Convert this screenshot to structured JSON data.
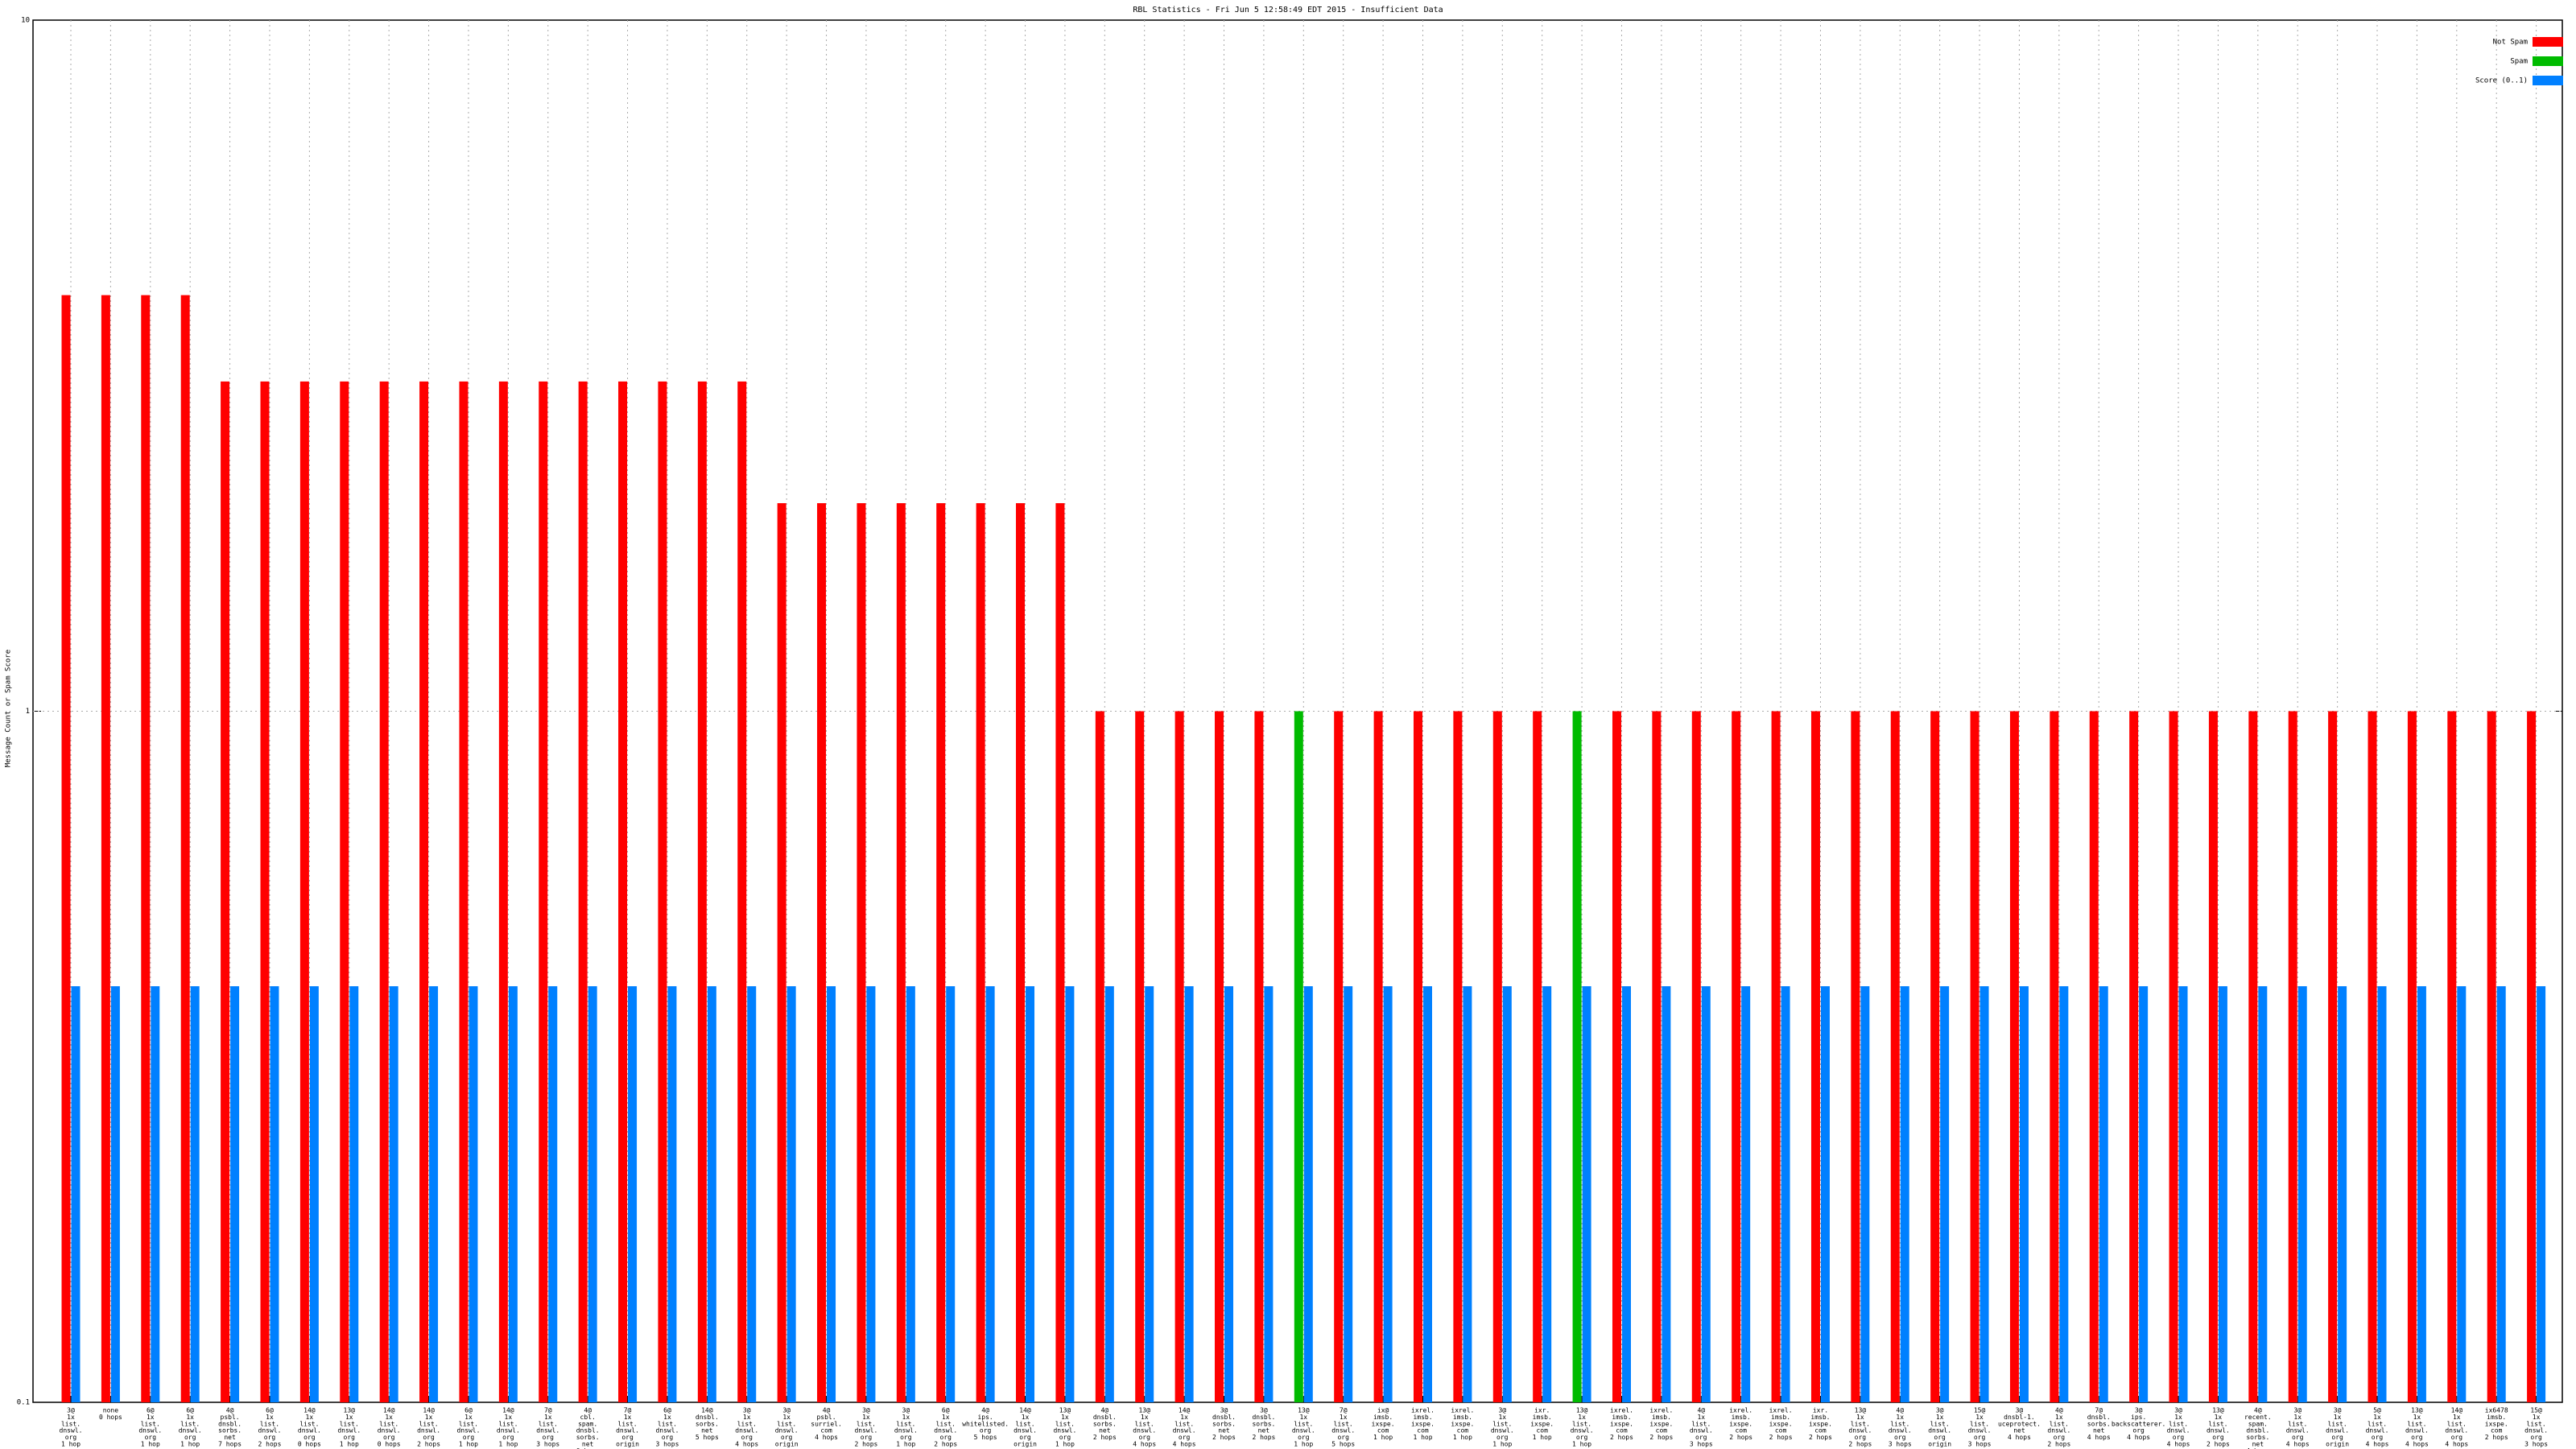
{
  "chart_data": {
    "type": "bar",
    "title": "RBL Statistics - Fri Jun  5 12:58:49 EDT 2015 - Insufficient Data",
    "y_label": "Message Count or Spam Score",
    "log_scale": true,
    "grid": true,
    "legend": "top-right",
    "ylim": [
      0.1,
      10
    ],
    "yticks": [
      0.1,
      1,
      10
    ],
    "categories": [
      [
        "3@",
        "1x",
        "list.",
        "dnswl.",
        "org",
        "1 hop"
      ],
      [
        "none",
        "0 hops"
      ],
      [
        "6@",
        "1x",
        "list.",
        "dnswl.",
        "org",
        "1 hop"
      ],
      [
        "6@",
        "1x",
        "list.",
        "dnswl.",
        "org",
        "1 hop"
      ],
      [
        "4@",
        "psbl.",
        "dnsbl.",
        "sorbs.",
        "net",
        "7 hops"
      ],
      [
        "6@",
        "1x",
        "list.",
        "dnswl.",
        "org",
        "2 hops"
      ],
      [
        "14@",
        "1x",
        "list.",
        "dnswl.",
        "org",
        "0 hops"
      ],
      [
        "13@",
        "1x",
        "list.",
        "dnswl.",
        "org",
        "1 hop"
      ],
      [
        "14@",
        "1x",
        "list.",
        "dnswl.",
        "org",
        "0 hops"
      ],
      [
        "14@",
        "1x",
        "list.",
        "dnswl.",
        "org",
        "2 hops"
      ],
      [
        "6@",
        "1x",
        "list.",
        "dnswl.",
        "org",
        "1 hop"
      ],
      [
        "14@",
        "1x",
        "list.",
        "dnswl.",
        "org",
        "1 hop"
      ],
      [
        "7@",
        "1x",
        "list.",
        "dnswl.",
        "org",
        "3 hops"
      ],
      [
        "4@",
        "cbl.",
        "spam.",
        "dnsbl.",
        "sorbs.",
        "net",
        "0 hops"
      ],
      [
        "7@",
        "1x",
        "list.",
        "dnswl.",
        "org",
        "origin"
      ],
      [
        "6@",
        "1x",
        "list.",
        "dnswl.",
        "org",
        "3 hops"
      ],
      [
        "14@",
        "dnsbl.",
        "sorbs.",
        "net",
        "5 hops"
      ],
      [
        "3@",
        "1x",
        "list.",
        "dnswl.",
        "org",
        "4 hops"
      ],
      [
        "3@",
        "1x",
        "list.",
        "dnswl.",
        "org",
        "origin"
      ],
      [
        "4@",
        "psbl.",
        "surriel.",
        "com",
        "4 hops"
      ],
      [
        "3@",
        "1x",
        "list.",
        "dnswl.",
        "org",
        "2 hops"
      ],
      [
        "3@",
        "1x",
        "list.",
        "dnswl.",
        "org",
        "1 hop"
      ],
      [
        "6@",
        "1x",
        "list.",
        "dnswl.",
        "org",
        "2 hops"
      ],
      [
        "4@",
        "ips.",
        "whitelisted.",
        "org",
        "5 hops"
      ],
      [
        "14@",
        "1x",
        "list.",
        "dnswl.",
        "org",
        "origin"
      ],
      [
        "13@",
        "1x",
        "list.",
        "dnswl.",
        "org",
        "1 hop"
      ],
      [
        "4@",
        "dnsbl.",
        "sorbs.",
        "net",
        "2 hops"
      ],
      [
        "13@",
        "1x",
        "list.",
        "dnswl.",
        "org",
        "4 hops"
      ],
      [
        "14@",
        "1x",
        "list.",
        "dnswl.",
        "org",
        "4 hops"
      ],
      [
        "3@",
        "dnsbl.",
        "sorbs.",
        "net",
        "2 hops"
      ],
      [
        "3@",
        "dnsbl.",
        "sorbs.",
        "net",
        "2 hops"
      ],
      [
        "13@",
        "1x",
        "list.",
        "dnswl.",
        "org",
        "1 hop"
      ],
      [
        "7@",
        "1x",
        "list.",
        "dnswl.",
        "org",
        "5 hops"
      ],
      [
        "ix@",
        "imsb.",
        "ixspe.",
        "com",
        "1 hop"
      ],
      [
        "ixrel.",
        "imsb.",
        "ixspe.",
        "com",
        "1 hop"
      ],
      [
        "ixrel.",
        "imsb.",
        "ixspe.",
        "com",
        "1 hop"
      ],
      [
        "3@",
        "1x",
        "list.",
        "dnswl.",
        "org",
        "1 hop"
      ],
      [
        "ixr.",
        "imsb.",
        "ixspe.",
        "com",
        "1 hop"
      ],
      [
        "13@",
        "1x",
        "list.",
        "dnswl.",
        "org",
        "1 hop"
      ],
      [
        "ixrel.",
        "imsb.",
        "ixspe.",
        "com",
        "2 hops"
      ],
      [
        "ixrel.",
        "imsb.",
        "ixspe.",
        "com",
        "2 hops"
      ],
      [
        "4@",
        "1x",
        "list.",
        "dnswl.",
        "org",
        "3 hops"
      ],
      [
        "ixrel.",
        "imsb.",
        "ixspe.",
        "com",
        "2 hops"
      ],
      [
        "ixrel.",
        "imsb.",
        "ixspe.",
        "com",
        "2 hops"
      ],
      [
        "ixr.",
        "imsb.",
        "ixspe.",
        "com",
        "2 hops"
      ],
      [
        "13@",
        "1x",
        "list.",
        "dnswl.",
        "org",
        "2 hops"
      ],
      [
        "4@",
        "1x",
        "list.",
        "dnswl.",
        "org",
        "3 hops"
      ],
      [
        "3@",
        "1x",
        "list.",
        "dnswl.",
        "org",
        "origin"
      ],
      [
        "15@",
        "1x",
        "list.",
        "dnswl.",
        "org",
        "3 hops"
      ],
      [
        "3@",
        "dnsbl-1.",
        "uceprotect.",
        "net",
        "4 hops"
      ],
      [
        "4@",
        "1x",
        "list.",
        "dnswl.",
        "org",
        "2 hops"
      ],
      [
        "7@",
        "dnsbl.",
        "sorbs.",
        "net",
        "4 hops"
      ],
      [
        "3@",
        "ips.",
        "backscatterer.",
        "org",
        "4 hops"
      ],
      [
        "3@",
        "1x",
        "list.",
        "dnswl.",
        "org",
        "4 hops"
      ],
      [
        "13@",
        "1x",
        "list.",
        "dnswl.",
        "org",
        "2 hops"
      ],
      [
        "4@",
        "recent.",
        "spam.",
        "dnsbl.",
        "sorbs.",
        "net",
        "4 hops"
      ],
      [
        "3@",
        "1x",
        "list.",
        "dnswl.",
        "org",
        "4 hops"
      ],
      [
        "3@",
        "1x",
        "list.",
        "dnswl.",
        "org",
        "origin"
      ],
      [
        "5@",
        "1x",
        "list.",
        "dnswl.",
        "org",
        "4 hops"
      ],
      [
        "13@",
        "1x",
        "list.",
        "dnswl.",
        "org",
        "4 hops"
      ],
      [
        "14@",
        "1x",
        "list.",
        "dnswl.",
        "org",
        "4 hops"
      ],
      [
        "ix6478",
        "imsb.",
        "ixspe.",
        "com",
        "2 hops"
      ],
      [
        "15@",
        "1x",
        "list.",
        "dnswl.",
        "org",
        "3 hops"
      ]
    ],
    "series": [
      {
        "name": "Not Spam",
        "color": "#ff0000",
        "values": [
          4,
          4,
          4,
          4,
          3,
          3,
          3,
          3,
          3,
          3,
          3,
          3,
          3,
          3,
          3,
          3,
          3,
          3,
          2,
          2,
          2,
          2,
          2,
          2,
          2,
          2,
          1,
          1,
          1,
          1,
          1,
          null,
          1,
          1,
          1,
          1,
          1,
          1,
          null,
          1,
          1,
          1,
          1,
          1,
          1,
          1,
          1,
          1,
          1,
          1,
          1,
          1,
          1,
          1,
          1,
          1,
          1,
          1,
          1,
          1,
          1,
          1,
          1
        ]
      },
      {
        "name": "Spam",
        "color": "#00bb00",
        "values": [
          null,
          null,
          null,
          null,
          null,
          null,
          null,
          null,
          null,
          null,
          null,
          null,
          null,
          null,
          null,
          null,
          null,
          null,
          null,
          null,
          null,
          null,
          null,
          null,
          null,
          null,
          null,
          null,
          null,
          null,
          null,
          1,
          null,
          null,
          null,
          null,
          null,
          null,
          1,
          null,
          null,
          null,
          null,
          null,
          null,
          null,
          null,
          null,
          null,
          null,
          null,
          null,
          null,
          null,
          null,
          null,
          null,
          null,
          null,
          null,
          null,
          null,
          null
        ]
      },
      {
        "name": "Score (0..1)",
        "color": "#0080ff",
        "values": [
          0.4,
          0.4,
          0.4,
          0.4,
          0.4,
          0.4,
          0.4,
          0.4,
          0.4,
          0.4,
          0.4,
          0.4,
          0.4,
          0.4,
          0.4,
          0.4,
          0.4,
          0.4,
          0.4,
          0.4,
          0.4,
          0.4,
          0.4,
          0.4,
          0.4,
          0.4,
          0.4,
          0.4,
          0.4,
          0.4,
          0.4,
          0.4,
          0.4,
          0.4,
          0.4,
          0.4,
          0.4,
          0.4,
          0.4,
          0.4,
          0.4,
          0.4,
          0.4,
          0.4,
          0.4,
          0.4,
          0.4,
          0.4,
          0.4,
          0.4,
          0.4,
          0.4,
          0.4,
          0.4,
          0.4,
          0.4,
          0.4,
          0.4,
          0.4,
          0.4,
          0.4,
          0.4,
          0.4
        ]
      }
    ]
  }
}
